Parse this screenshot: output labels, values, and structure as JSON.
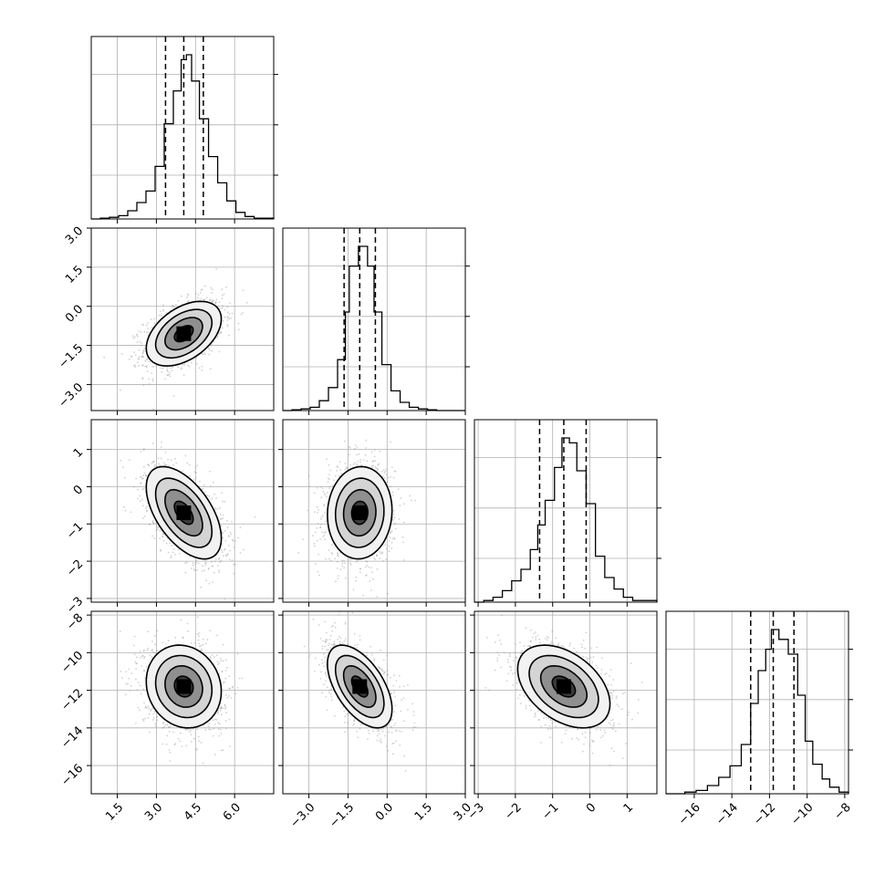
{
  "chart_data": {
    "type": "corner",
    "title": "",
    "parameters": [
      {
        "index": 0,
        "xlim": [
          0.5,
          7.5
        ],
        "ticks": [
          1.5,
          3.0,
          4.5,
          6.0
        ],
        "tick_labels": [
          "1.5",
          "3.0",
          "4.5",
          "6.0"
        ],
        "quantiles": [
          3.35,
          4.05,
          4.8
        ],
        "mean": 4.05,
        "sd": 0.72
      },
      {
        "index": 1,
        "xlim": [
          -4.0,
          3.0
        ],
        "ticks": [
          -3.0,
          -1.5,
          0.0,
          1.5,
          3.0
        ],
        "tick_labels": [
          "−3.0",
          "−1.5",
          "0.0",
          "1.5",
          "3.0"
        ],
        "quantiles": [
          -1.65,
          -1.05,
          -0.45
        ],
        "mean": -1.05,
        "sd": 0.62
      },
      {
        "index": 2,
        "xlim": [
          -3.1,
          1.8
        ],
        "ticks": [
          -3,
          -2,
          -1,
          0,
          1
        ],
        "tick_labels": [
          "−3",
          "−2",
          "−1",
          "0",
          "1"
        ],
        "quantiles": [
          -1.35,
          -0.7,
          -0.1
        ],
        "mean": -0.7,
        "sd": 0.62
      },
      {
        "index": 3,
        "xlim": [
          -17.5,
          -7.8
        ],
        "ticks": [
          -16,
          -14,
          -12,
          -10,
          -8
        ],
        "tick_labels": [
          "−16",
          "−14",
          "−12",
          "−10",
          "−8"
        ],
        "quantiles": [
          -13.0,
          -11.8,
          -10.7
        ],
        "mean": -11.8,
        "sd": 1.1
      }
    ],
    "histograms": [
      {
        "param": 0,
        "bin_edges": [
          0.5,
          0.85,
          1.2,
          1.55,
          1.9,
          2.25,
          2.6,
          2.95,
          3.3,
          3.65,
          3.95,
          4.15,
          4.35,
          4.65,
          5.0,
          5.35,
          5.7,
          6.05,
          6.4,
          6.75,
          7.5
        ],
        "counts": [
          0,
          0.5,
          1,
          2,
          5,
          10,
          17,
          32,
          58,
          78,
          97,
          100,
          84,
          61,
          38,
          22,
          11,
          4,
          1.5,
          0.5
        ]
      },
      {
        "param": 1,
        "bin_edges": [
          -4.0,
          -3.65,
          -3.3,
          -2.95,
          -2.6,
          -2.25,
          -1.9,
          -1.6,
          -1.45,
          -1.1,
          -0.75,
          -0.5,
          -0.2,
          0.15,
          0.5,
          0.85,
          1.2,
          1.55,
          1.9,
          2.25,
          3.0
        ],
        "counts": [
          0,
          0.5,
          1,
          2,
          6,
          14,
          31,
          60,
          88,
          100,
          88,
          60,
          28,
          12,
          5,
          2,
          1,
          0.5,
          0,
          0
        ]
      },
      {
        "param": 2,
        "bin_edges": [
          -3.1,
          -2.85,
          -2.6,
          -2.35,
          -2.1,
          -1.85,
          -1.6,
          -1.4,
          -1.2,
          -0.95,
          -0.75,
          -0.55,
          -0.35,
          -0.1,
          0.15,
          0.4,
          0.65,
          0.9,
          1.15,
          1.8
        ],
        "counts": [
          0,
          1,
          3,
          7,
          13,
          20,
          32,
          47,
          62,
          82,
          100,
          97,
          80,
          60,
          28,
          15,
          8,
          3,
          1
        ]
      },
      {
        "param": 3,
        "bin_edges": [
          -17.5,
          -16.5,
          -15.9,
          -15.3,
          -14.7,
          -14.1,
          -13.5,
          -13.0,
          -12.6,
          -12.2,
          -11.9,
          -11.5,
          -11.0,
          -10.5,
          -10.1,
          -9.7,
          -9.2,
          -8.8,
          -8.3,
          -7.8
        ],
        "counts": [
          0,
          1,
          2,
          5,
          10,
          17,
          30,
          55,
          75,
          88,
          100,
          94,
          85,
          60,
          32,
          18,
          9,
          4,
          1
        ]
      }
    ],
    "pairs": [
      {
        "x_param": 0,
        "y_param": 1,
        "correlation": 0.45
      },
      {
        "x_param": 0,
        "y_param": 2,
        "correlation": -0.55
      },
      {
        "x_param": 1,
        "y_param": 2,
        "correlation": 0.05
      },
      {
        "x_param": 0,
        "y_param": 3,
        "correlation": -0.12
      },
      {
        "x_param": 1,
        "y_param": 3,
        "correlation": -0.55
      },
      {
        "x_param": 2,
        "y_param": 3,
        "correlation": -0.42
      }
    ],
    "contour_levels_sigma": [
      0.5,
      1.0,
      1.5,
      2.0
    ],
    "grid": true,
    "colors": {
      "line": "#000000",
      "scatter": "#9a9a9a",
      "grid": "#b0b0b0"
    }
  }
}
